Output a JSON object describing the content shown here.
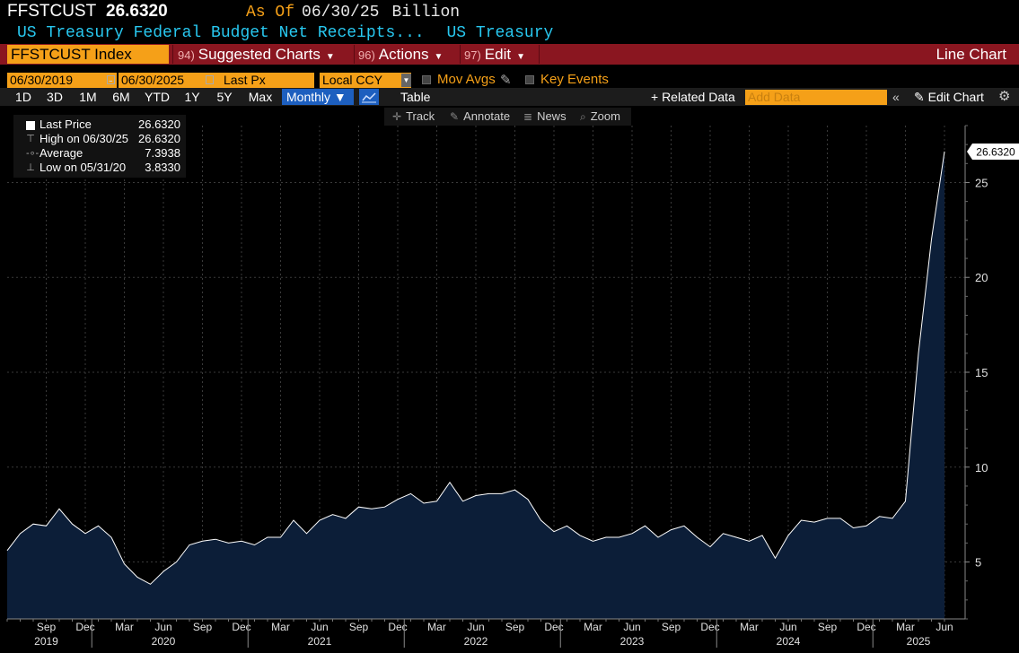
{
  "header": {
    "ticker": "FFSTCUST",
    "price": "26.6320",
    "as_of_label": "As Of",
    "as_of_date": "06/30/25",
    "unit": "Billion",
    "description": "US Treasury Federal Budget Net Receipts...",
    "source": "US Treasury"
  },
  "menu": {
    "security": "FFSTCUST Index",
    "suggested_num": "94)",
    "suggested": "Suggested Charts",
    "actions_num": "96)",
    "actions": "Actions",
    "edit_num": "97)",
    "edit": "Edit",
    "line_chart": "Line Chart"
  },
  "controls": {
    "start_date": "06/30/2019",
    "dash": "-",
    "end_date": "06/30/2025",
    "field": "Last Px",
    "currency": "Local CCY",
    "mov_avgs": "Mov Avgs",
    "key_events": "Key Events"
  },
  "ranges": {
    "buttons": [
      "1D",
      "3D",
      "1M",
      "6M",
      "YTD",
      "1Y",
      "5Y",
      "Max"
    ],
    "frequency": "Monthly ▼",
    "table": "Table",
    "related": "+ Related Data",
    "add_data_placeholder": "Add Data",
    "chevrons": "«",
    "edit_chart": "✎ Edit Chart",
    "gear": "⚙"
  },
  "toolbar": {
    "track": "Track",
    "annotate": "Annotate",
    "news": "News",
    "zoom": "Zoom",
    "track_icon": "crosshair-icon",
    "annotate_icon": "pencil-icon",
    "news_icon": "news-icon",
    "zoom_icon": "magnifier-icon"
  },
  "legend": {
    "last_label": "Last Price",
    "last_value": "26.6320",
    "high_label": "High on 06/30/25",
    "high_value": "26.6320",
    "avg_label": "Average",
    "avg_value": "7.3938",
    "low_label": "Low on 05/31/20",
    "low_value": "3.8330"
  },
  "chart_data": {
    "type": "area",
    "x": [
      "2019-06",
      "2019-07",
      "2019-08",
      "2019-09",
      "2019-10",
      "2019-11",
      "2019-12",
      "2020-01",
      "2020-02",
      "2020-03",
      "2020-04",
      "2020-05",
      "2020-06",
      "2020-07",
      "2020-08",
      "2020-09",
      "2020-10",
      "2020-11",
      "2020-12",
      "2021-01",
      "2021-02",
      "2021-03",
      "2021-04",
      "2021-05",
      "2021-06",
      "2021-07",
      "2021-08",
      "2021-09",
      "2021-10",
      "2021-11",
      "2021-12",
      "2022-01",
      "2022-02",
      "2022-03",
      "2022-04",
      "2022-05",
      "2022-06",
      "2022-07",
      "2022-08",
      "2022-09",
      "2022-10",
      "2022-11",
      "2022-12",
      "2023-01",
      "2023-02",
      "2023-03",
      "2023-04",
      "2023-05",
      "2023-06",
      "2023-07",
      "2023-08",
      "2023-09",
      "2023-10",
      "2023-11",
      "2023-12",
      "2024-01",
      "2024-02",
      "2024-03",
      "2024-04",
      "2024-05",
      "2024-06",
      "2024-07",
      "2024-08",
      "2024-09",
      "2024-10",
      "2024-11",
      "2024-12",
      "2025-01",
      "2025-02",
      "2025-03",
      "2025-04",
      "2025-05",
      "2025-06"
    ],
    "values": [
      5.6,
      6.5,
      7.0,
      6.9,
      7.8,
      7.0,
      6.5,
      6.9,
      6.3,
      4.9,
      4.2,
      3.83,
      4.5,
      5.0,
      5.9,
      6.1,
      6.2,
      6.0,
      6.1,
      5.9,
      6.3,
      6.3,
      7.2,
      6.5,
      7.2,
      7.5,
      7.3,
      7.9,
      7.8,
      7.9,
      8.3,
      8.6,
      8.1,
      8.2,
      9.2,
      8.2,
      8.5,
      8.6,
      8.6,
      8.8,
      8.3,
      7.2,
      6.6,
      6.9,
      6.4,
      6.1,
      6.3,
      6.3,
      6.5,
      6.9,
      6.3,
      6.7,
      6.9,
      6.3,
      5.8,
      6.5,
      6.3,
      6.1,
      6.4,
      5.2,
      6.4,
      7.2,
      7.1,
      7.3,
      7.3,
      6.8,
      6.9,
      7.4,
      7.3,
      8.2,
      16.0,
      22.0,
      26.632
    ],
    "ylim": [
      2.0,
      28.0
    ],
    "y_ticks": [
      5,
      10,
      15,
      20,
      25
    ],
    "x_month_labels": [
      {
        "m": "2019-09",
        "t": "Sep"
      },
      {
        "m": "2019-12",
        "t": "Dec"
      },
      {
        "m": "2020-03",
        "t": "Mar"
      },
      {
        "m": "2020-06",
        "t": "Jun"
      },
      {
        "m": "2020-09",
        "t": "Sep"
      },
      {
        "m": "2020-12",
        "t": "Dec"
      },
      {
        "m": "2021-03",
        "t": "Mar"
      },
      {
        "m": "2021-06",
        "t": "Jun"
      },
      {
        "m": "2021-09",
        "t": "Sep"
      },
      {
        "m": "2021-12",
        "t": "Dec"
      },
      {
        "m": "2022-03",
        "t": "Mar"
      },
      {
        "m": "2022-06",
        "t": "Jun"
      },
      {
        "m": "2022-09",
        "t": "Sep"
      },
      {
        "m": "2022-12",
        "t": "Dec"
      },
      {
        "m": "2023-03",
        "t": "Mar"
      },
      {
        "m": "2023-06",
        "t": "Jun"
      },
      {
        "m": "2023-09",
        "t": "Sep"
      },
      {
        "m": "2023-12",
        "t": "Dec"
      },
      {
        "m": "2024-03",
        "t": "Mar"
      },
      {
        "m": "2024-06",
        "t": "Jun"
      },
      {
        "m": "2024-09",
        "t": "Sep"
      },
      {
        "m": "2024-12",
        "t": "Dec"
      },
      {
        "m": "2025-03",
        "t": "Mar"
      },
      {
        "m": "2025-06",
        "t": "Jun"
      }
    ],
    "x_year_labels": [
      {
        "m": "2019-09",
        "t": "2019"
      },
      {
        "m": "2020-06",
        "t": "2020"
      },
      {
        "m": "2021-06",
        "t": "2021"
      },
      {
        "m": "2022-06",
        "t": "2022"
      },
      {
        "m": "2023-06",
        "t": "2023"
      },
      {
        "m": "2024-06",
        "t": "2024"
      },
      {
        "m": "2025-04",
        "t": "2025"
      }
    ],
    "year_separators": [
      "2019-12",
      "2020-12",
      "2021-12",
      "2022-12",
      "2023-12",
      "2024-12"
    ],
    "last_label": "26.6320",
    "grid": true,
    "colors": {
      "fill": "#0c1e38",
      "line": "#ffffff",
      "grid": "#3a3a3a",
      "label_bg": "#ffffff"
    }
  }
}
